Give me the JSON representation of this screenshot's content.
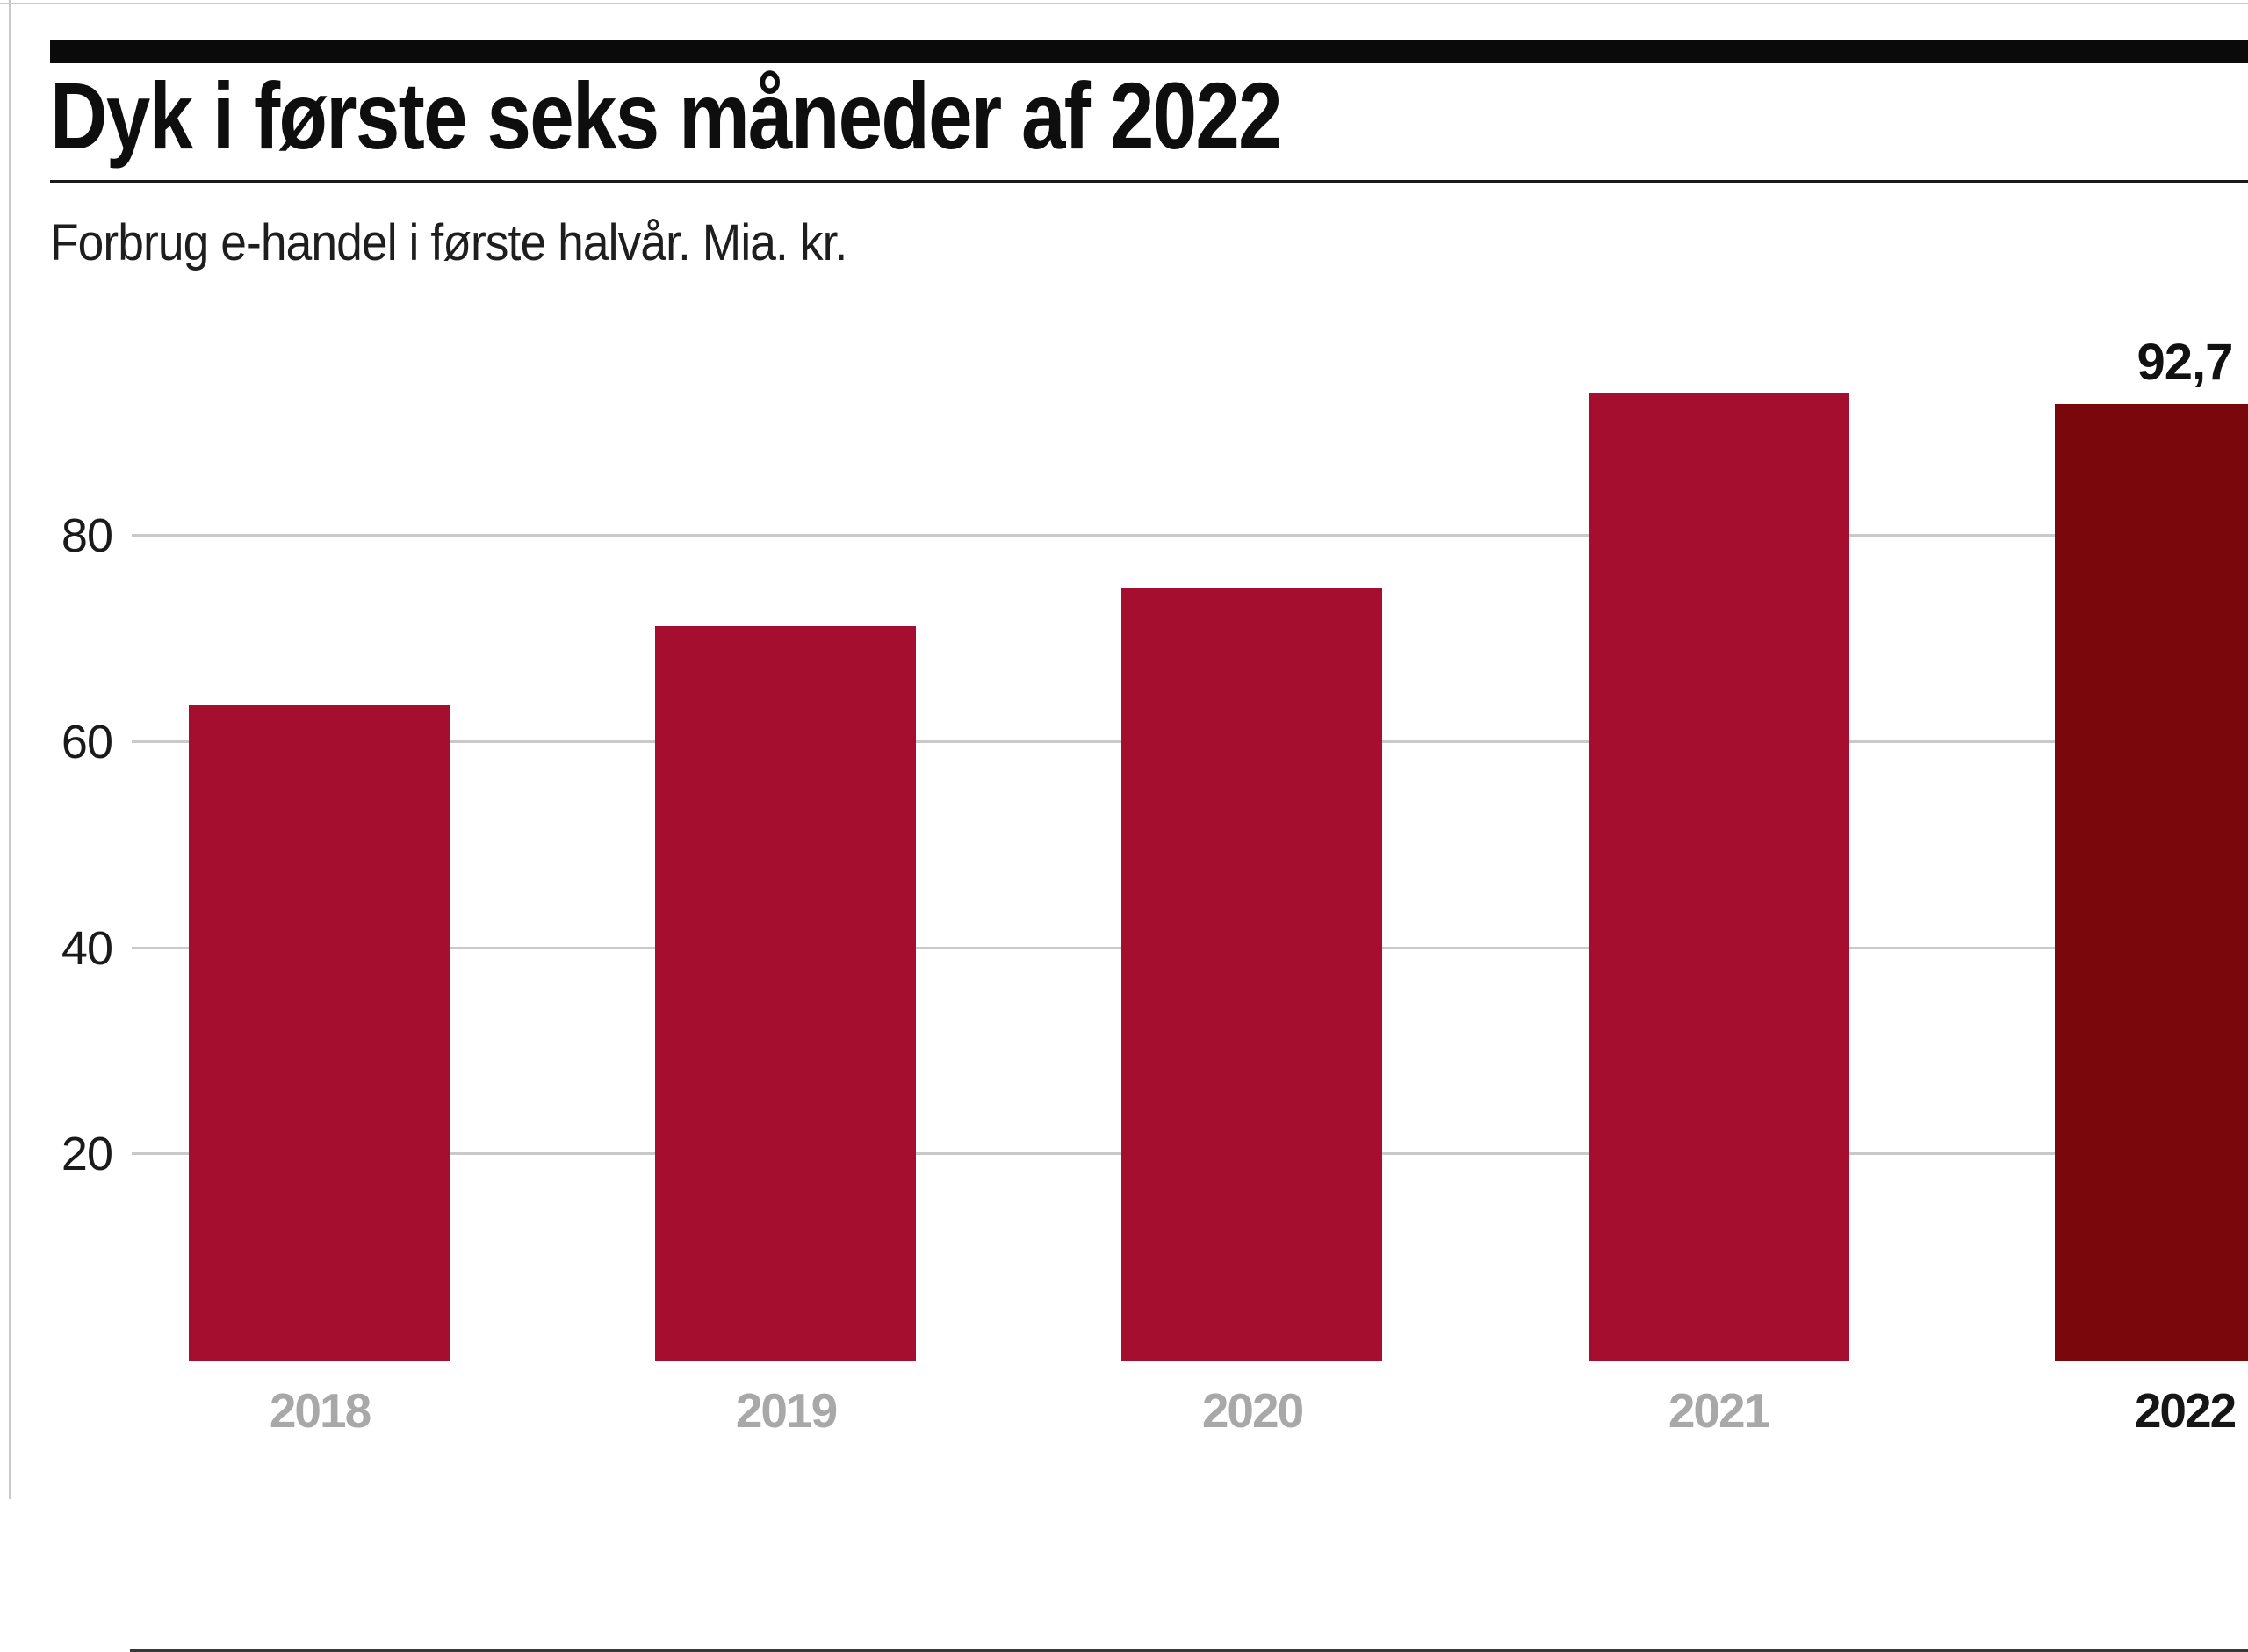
{
  "header": {
    "title": "Dyk i første seks måneder af 2022",
    "subtitle": "Forbrug e-handel i første halvår. Mia. kr."
  },
  "chart_data": {
    "type": "bar",
    "title": "Dyk i første seks måneder af 2022",
    "subtitle": "Forbrug e-handel i første halvår. Mia. kr.",
    "unit": "Mia. kr.",
    "categories": [
      "2018",
      "2019",
      "2020",
      "2021",
      "2022"
    ],
    "values": [
      63.5,
      71.1,
      74.8,
      93.8,
      92.7
    ],
    "value_labels": {
      "2022": "92,7"
    },
    "highlight_category": "2022",
    "yticks": [
      20,
      40,
      60,
      80
    ],
    "ylim": [
      0,
      95
    ],
    "grid": true,
    "legend": "none",
    "colors": {
      "bar": "#A50E2E",
      "bar_highlight": "#7A070C",
      "grid": "#C9C9C9",
      "axis": "#383838",
      "tick_label": "#1A1A1A",
      "category_label": "#A8A8A8",
      "category_label_highlight": "#161616",
      "value_label": "#111111",
      "header_bar": "#0A0A0A"
    }
  }
}
